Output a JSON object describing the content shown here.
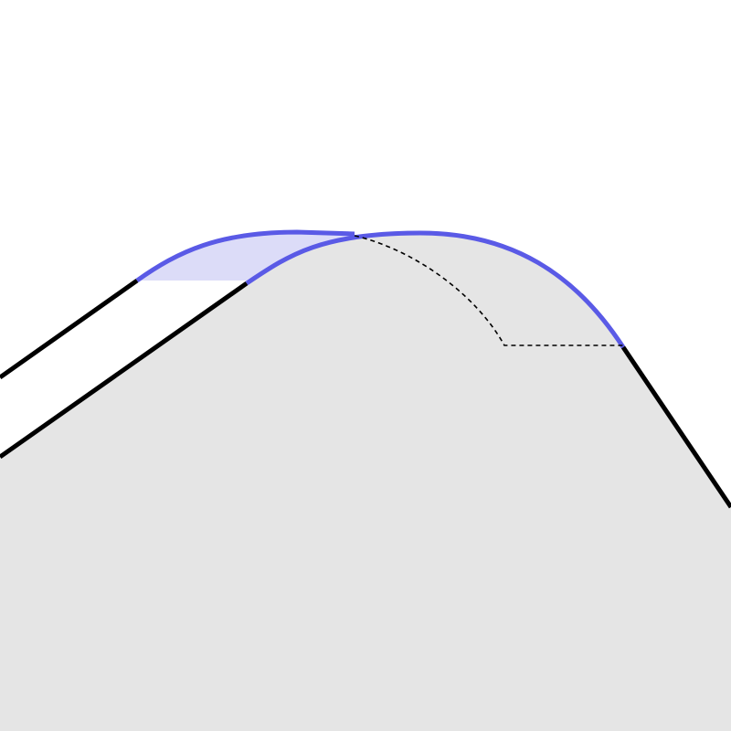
{
  "colors": {
    "background": "#ffffff",
    "region_fill": "#e5e5e5",
    "highlight_fill": "#dcdcf8",
    "highlight_stroke": "#5a5ae6",
    "outline_stroke": "#000000",
    "guide_stroke": "#000000"
  }
}
